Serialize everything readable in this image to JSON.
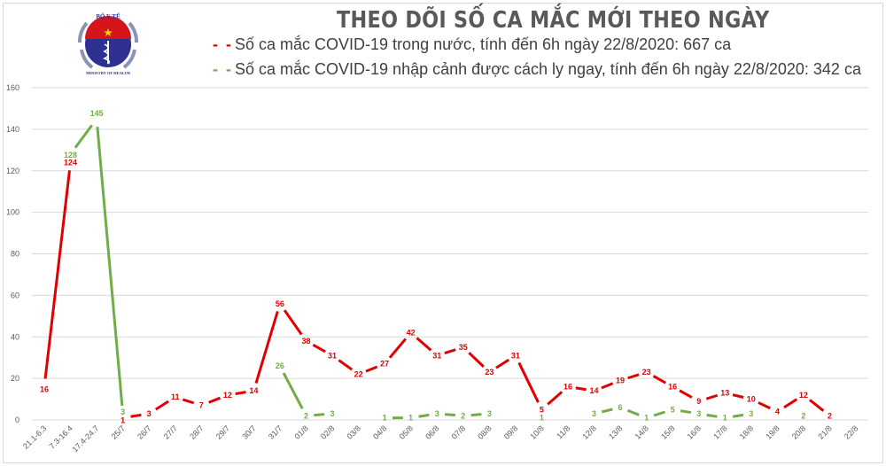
{
  "header": {
    "logo": {
      "top_text": "BỘ Y TẾ",
      "bottom_text": "MINISTRY OF HEALTH",
      "icon": "caduceus-icon"
    },
    "title": "THEO DÕI SỐ CA MẮC MỚI THEO NGÀY"
  },
  "legend": [
    {
      "marker": "- -",
      "label": "Số ca mắc COVID-19 trong nước, tính đến 6h ngày 22/8/2020: 667 ca",
      "color": "#e00000"
    },
    {
      "marker": "- -",
      "label": "Số ca mắc COVID-19 nhập cảnh được cách ly ngay, tính đến 6h ngày 22/8/2020: 342 ca",
      "color": "#70ad47"
    }
  ],
  "chart_data": {
    "type": "line",
    "title": "THEO DÕI SỐ CA MẮC MỚI THEO NGÀY",
    "xlabel": "",
    "ylabel": "",
    "ylim": [
      0,
      160
    ],
    "yticks": [
      0,
      20,
      40,
      60,
      80,
      100,
      120,
      140,
      160
    ],
    "grid": true,
    "legend_position": "top",
    "categories": [
      "21.1-6.3",
      "7.3-16.4",
      "17.4-24.7",
      "25/7",
      "26/7",
      "27/7",
      "28/7",
      "29/7",
      "30/7",
      "31/7",
      "01/8",
      "02/8",
      "03/8",
      "04/8",
      "05/8",
      "06/8",
      "07/8",
      "08/8",
      "09/8",
      "10/8",
      "11/8",
      "12/8",
      "13/8",
      "14/8",
      "15/8",
      "16/8",
      "17/8",
      "18/8",
      "19/8",
      "20/8",
      "21/8",
      "22/8"
    ],
    "series": [
      {
        "name": "Số ca mắc COVID-19 trong nước, tính đến 6h ngày 22/8/2020: 667 ca",
        "color": "#e00000",
        "values": [
          16,
          124,
          null,
          1,
          3,
          11,
          7,
          12,
          14,
          56,
          38,
          31,
          22,
          27,
          42,
          31,
          35,
          23,
          31,
          5,
          16,
          14,
          19,
          23,
          16,
          9,
          13,
          10,
          4,
          12,
          2,
          null
        ]
      },
      {
        "name": "Số ca mắc COVID-19 nhập cảnh được cách ly ngay, tính đến 6h ngày 22/8/2020: 342 ca",
        "color": "#70ad47",
        "values": [
          null,
          128,
          145,
          3,
          null,
          null,
          null,
          null,
          null,
          26,
          2,
          3,
          null,
          1,
          1,
          3,
          2,
          3,
          null,
          1,
          null,
          3,
          6,
          1,
          5,
          3,
          1,
          3,
          null,
          2,
          null,
          null
        ]
      }
    ]
  }
}
